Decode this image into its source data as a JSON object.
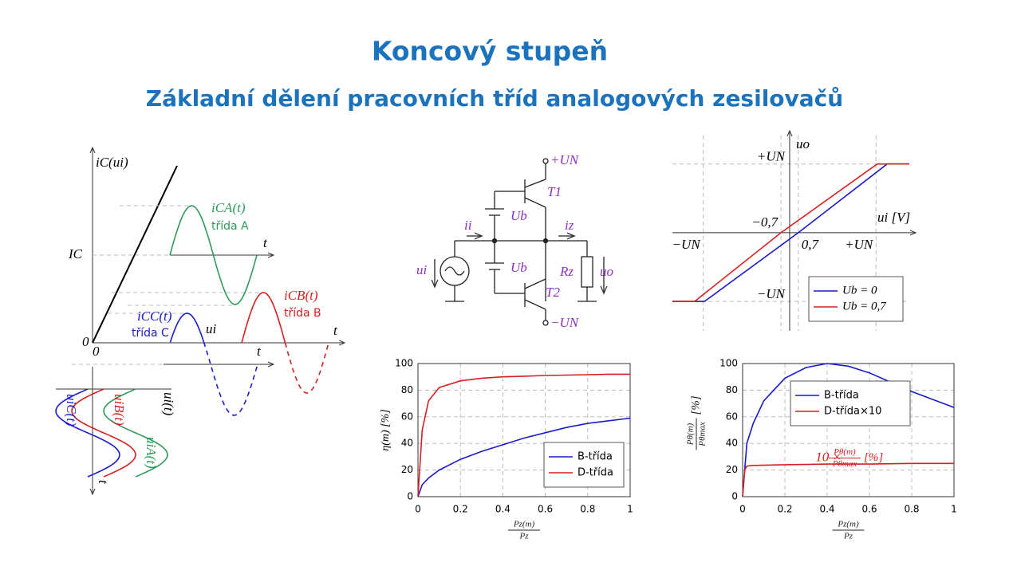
{
  "header": {
    "title": "Koncový stupeň",
    "subtitle": "Základní dělení pracovních tříd analogových zesilovačů"
  },
  "diagram": {
    "ic_axis": "iC(ui)",
    "ic_level": "IC",
    "origin_y": "0",
    "origin_x": "0",
    "class_a": {
      "name": "iCA(t)",
      "label": "třída A",
      "t": "t"
    },
    "class_b": {
      "name": "iCB(t)",
      "label": "třída B",
      "t": "t"
    },
    "class_c": {
      "name": "iCC(t)",
      "label": "třída C",
      "ui": "ui",
      "t": "t"
    },
    "inputs": {
      "a": "uiA(t)",
      "b": "uiB(t)",
      "c": "uiC(t)",
      "ui": "ui(t)",
      "t": "t"
    }
  },
  "circuit": {
    "plus": "+UN",
    "t1": "T1",
    "ub1": "Ub",
    "ii": "ii",
    "iz": "iz",
    "ui": "ui",
    "ub2": "Ub",
    "rz": "Rz",
    "uo": "uo",
    "t2": "T2",
    "minus": "−UN"
  },
  "chart_data": [
    {
      "type": "line",
      "ylabel": "uo",
      "xlabel": "ui [V]",
      "xlim": [
        -9.5,
        9.7
      ],
      "ylim": [
        -10,
        9.9
      ],
      "xticks": [
        {
          "value": -7,
          "label": "−UN"
        },
        {
          "value": -0.7,
          "label": "−0,7"
        },
        {
          "value": 0.7,
          "label": "0,7"
        },
        {
          "value": 7,
          "label": "+UN"
        }
      ],
      "yticks": [
        {
          "value": -7,
          "label": "−UN"
        },
        {
          "value": 7,
          "label": "+UN"
        }
      ],
      "grid": true,
      "legend": "lower right",
      "series": [
        {
          "name": "Ub = 0",
          "color": "#1a1acc",
          "x": [
            -9.5,
            -6.9,
            0.7,
            7.9,
            9.7
          ],
          "values": [
            -7,
            -7,
            0,
            7,
            7
          ]
        },
        {
          "name": "Ub = 0,7",
          "color": "#d42020",
          "x": [
            -9.5,
            -7.7,
            -0.7,
            7.1,
            9.7
          ],
          "values": [
            -7,
            -7,
            0,
            7,
            7
          ]
        }
      ]
    },
    {
      "type": "line",
      "ylabel": "η(m) [%]",
      "xlabel": {
        "num": "Pz(m)",
        "den": "Pz"
      },
      "xlim": [
        0,
        1
      ],
      "ylim": [
        0,
        100
      ],
      "xticks": [
        0,
        0.2,
        0.4,
        0.6,
        0.8,
        1
      ],
      "yticks": [
        0,
        20,
        40,
        60,
        80,
        100
      ],
      "grid": true,
      "legend": "lower right",
      "series": [
        {
          "name": "B-třída",
          "color": "#1a1acc",
          "x": [
            0,
            0.02,
            0.05,
            0.1,
            0.2,
            0.3,
            0.4,
            0.5,
            0.6,
            0.7,
            0.8,
            0.9,
            1
          ],
          "values": [
            0,
            9,
            14,
            20,
            28,
            34,
            39,
            44,
            48,
            52,
            55,
            57,
            59
          ]
        },
        {
          "name": "D-třída",
          "color": "#d42020",
          "x": [
            0,
            0.02,
            0.05,
            0.1,
            0.2,
            0.3,
            0.4,
            0.5,
            0.6,
            0.7,
            0.8,
            0.9,
            1
          ],
          "values": [
            0,
            50,
            72,
            82,
            87,
            89,
            90,
            90.5,
            91,
            91.3,
            91.6,
            92,
            92
          ]
        }
      ]
    },
    {
      "type": "line",
      "ylabel": {
        "num": "Pθ(m)",
        "den": "Pθmax",
        "unit": "[%]"
      },
      "xlabel": {
        "num": "Pz(m)",
        "den": "Pz"
      },
      "xlim": [
        0,
        1
      ],
      "ylim": [
        0,
        100
      ],
      "xticks": [
        0,
        0.2,
        0.4,
        0.6,
        0.8,
        1
      ],
      "yticks": [
        0,
        20,
        40,
        60,
        80,
        100
      ],
      "grid": true,
      "legend": "upper left",
      "annotation": {
        "prefix": "10 ×",
        "num": "Pθ(m)",
        "den": "Pθmax",
        "unit": "[%]"
      },
      "series": [
        {
          "name": "B-třída",
          "color": "#1a1acc",
          "x": [
            0,
            0.02,
            0.05,
            0.1,
            0.2,
            0.3,
            0.4,
            0.5,
            0.6,
            0.7,
            0.8,
            0.9,
            1
          ],
          "values": [
            0,
            40,
            55,
            72,
            89,
            97,
            100,
            98,
            93,
            86,
            79,
            73,
            67
          ]
        },
        {
          "name": "D-třída×10",
          "color": "#d42020",
          "x": [
            0,
            0.01,
            0.02,
            0.05,
            0.2,
            0.4,
            0.6,
            0.8,
            1
          ],
          "values": [
            0,
            20,
            23,
            23.5,
            24,
            24.5,
            24.5,
            25,
            25
          ]
        }
      ]
    }
  ]
}
